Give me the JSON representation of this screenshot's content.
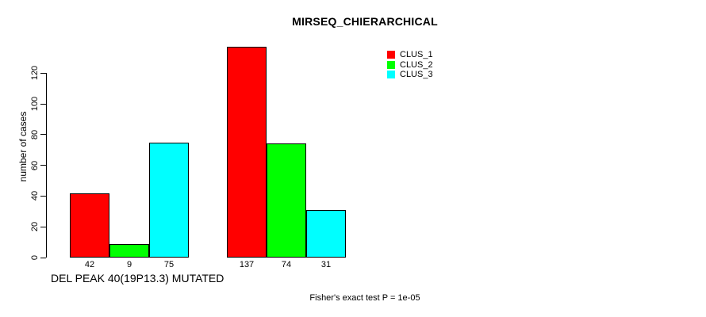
{
  "chart_data": {
    "type": "bar",
    "title": "MIRSEQ_CHIERARCHICAL",
    "ylabel": "number of cases",
    "xlabel": "DEL PEAK 40(19P13.3) MUTATED",
    "annotation": "Fisher's exact test P = 1e-05",
    "categories": [
      "",
      ""
    ],
    "series": [
      {
        "name": "CLUS_1",
        "color": "#FF0000",
        "values": [
          42,
          137
        ]
      },
      {
        "name": "CLUS_2",
        "color": "#00FF00",
        "values": [
          9,
          74
        ]
      },
      {
        "name": "CLUS_3",
        "color": "#00FFFF",
        "values": [
          75,
          31
        ]
      }
    ],
    "yticks": [
      0,
      20,
      40,
      60,
      80,
      100,
      120
    ],
    "ylim": [
      0,
      140
    ],
    "grid": false,
    "bar_value_labels_shown": true,
    "bar_border_color": "#000000",
    "background_color": "#FFFFFF",
    "legend_position": "top-right",
    "axis_color": "#000000"
  }
}
